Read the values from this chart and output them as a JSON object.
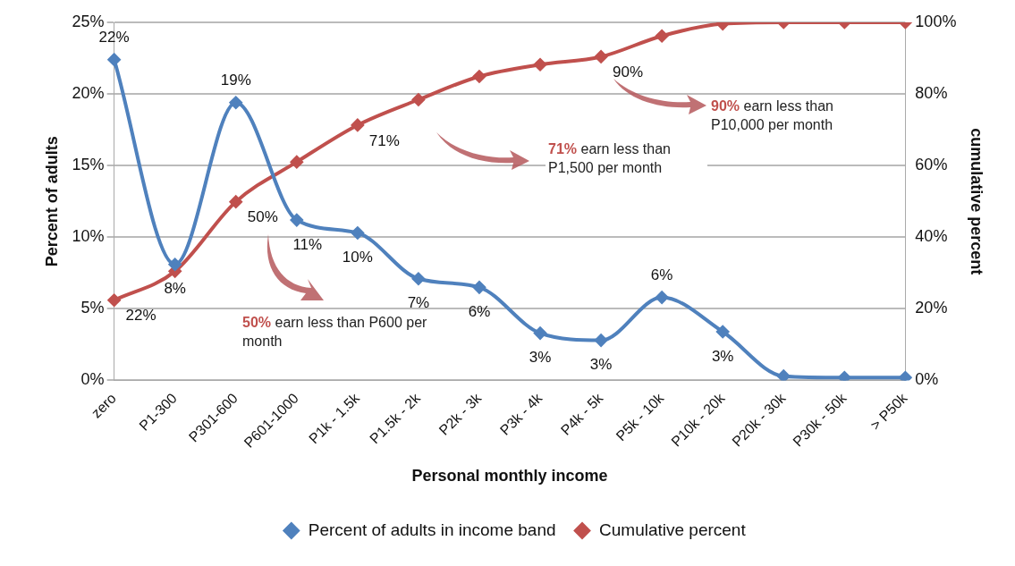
{
  "chart_data": {
    "type": "line",
    "xlabel": "Personal monthly income",
    "ylabel": "Percent of adults",
    "y2label": "cumulative percent",
    "categories": [
      "zero",
      "P1-300",
      "P301-600",
      "P601-1000",
      "P1k - 1.5k",
      "P1.5k - 2k",
      "P2k - 3k",
      "P3k - 4k",
      "P4k - 5k",
      "P5k - 10k",
      "P10k - 20k",
      "P20k - 30k",
      "P30k - 50k",
      "> P50k"
    ],
    "series": [
      {
        "name": "Percent of adults in income band",
        "color": "#4f81bd",
        "values": [
          22.4,
          8.1,
          19.4,
          11.2,
          10.3,
          7.1,
          6.5,
          3.3,
          2.8,
          5.8,
          3.4,
          0.3,
          0.2,
          0.2
        ],
        "value_labels": [
          "22%",
          "8%",
          "19%",
          "11%",
          "10%",
          "7%",
          "6%",
          "3%",
          "3%",
          "6%",
          "3%",
          null,
          null,
          null
        ]
      },
      {
        "name": "Cumulative percent",
        "color": "#c0504d",
        "axis": "y2",
        "values": [
          22.4,
          30.5,
          49.9,
          61,
          71.3,
          78.4,
          84.9,
          88.2,
          90.4,
          96.2,
          99.6,
          100,
          100,
          100
        ],
        "value_labels": [
          "22%",
          null,
          "50%",
          null,
          "71%",
          null,
          null,
          null,
          "90%",
          null,
          null,
          null,
          null,
          null
        ]
      }
    ],
    "ylim": [
      0,
      25
    ],
    "yticks": [
      {
        "value": 0,
        "label": "0%"
      },
      {
        "value": 5,
        "label": "5%"
      },
      {
        "value": 10,
        "label": "10%"
      },
      {
        "value": 15,
        "label": "15%"
      },
      {
        "value": 20,
        "label": "20%"
      },
      {
        "value": 25,
        "label": "25%"
      }
    ],
    "y2lim": [
      0,
      100
    ],
    "y2ticks": [
      {
        "value": 0,
        "label": "0%"
      },
      {
        "value": 20,
        "label": "20%"
      },
      {
        "value": 40,
        "label": "40%"
      },
      {
        "value": 60,
        "label": "60%"
      },
      {
        "value": 80,
        "label": "80%"
      },
      {
        "value": 100,
        "label": "100%"
      }
    ],
    "grid": "y",
    "legend": "bottom",
    "marker": "diamond",
    "line_style": "solid",
    "annotations": [
      "50% earn less than P600 per month",
      "71% earn less than P1,500 per month",
      "90% earn less than P10,000 per month"
    ]
  }
}
